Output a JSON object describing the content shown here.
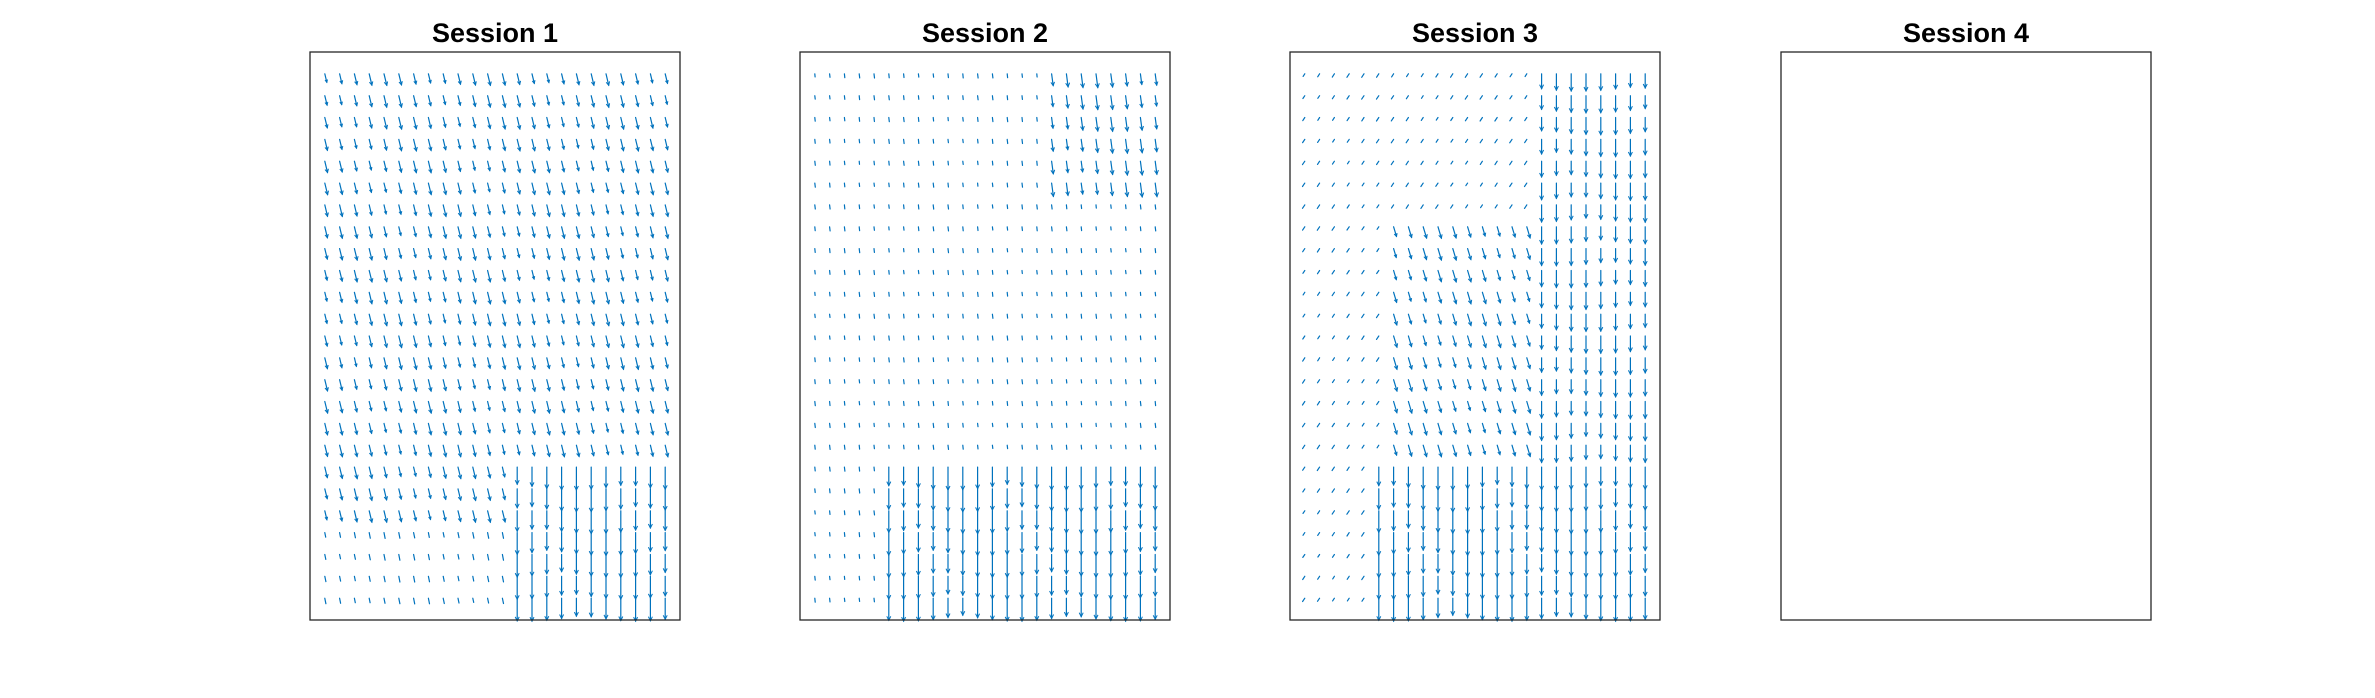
{
  "chart_data": [
    {
      "type": "quiver",
      "title": "Session 1",
      "xlabel": "",
      "ylabel": "",
      "axis_ticks": false,
      "grid": false,
      "arrow_color": "#0072BD",
      "grid_size": [
        24,
        25
      ],
      "regions": [
        {
          "x": [
            0.0,
            1.0
          ],
          "y": [
            0.0,
            1.0
          ],
          "dx": 0.12,
          "dy": -0.5
        },
        {
          "x": [
            0.55,
            1.0
          ],
          "y": [
            0.0,
            0.3
          ],
          "dx": 0.0,
          "dy": -1.0
        },
        {
          "x": [
            0.0,
            0.55
          ],
          "y": [
            0.0,
            0.15
          ],
          "dx": 0.05,
          "dy": -0.25
        }
      ]
    },
    {
      "type": "quiver",
      "title": "Session 2",
      "xlabel": "",
      "ylabel": "",
      "axis_ticks": false,
      "grid": false,
      "arrow_color": "#0072BD",
      "grid_size": [
        24,
        25
      ],
      "regions": [
        {
          "x": [
            0.0,
            1.0
          ],
          "y": [
            0.0,
            1.0
          ],
          "dx": 0.02,
          "dy": -0.18
        },
        {
          "x": [
            0.2,
            1.0
          ],
          "y": [
            0.0,
            0.3
          ],
          "dx": 0.0,
          "dy": -1.0
        },
        {
          "x": [
            0.65,
            1.0
          ],
          "y": [
            0.75,
            1.0
          ],
          "dx": 0.08,
          "dy": -0.6
        }
      ]
    },
    {
      "type": "quiver",
      "title": "Session 3",
      "xlabel": "",
      "ylabel": "",
      "axis_ticks": false,
      "grid": false,
      "arrow_color": "#0072BD",
      "grid_size": [
        24,
        25
      ],
      "regions": [
        {
          "x": [
            0.0,
            1.0
          ],
          "y": [
            0.0,
            1.0
          ],
          "dx": -0.1,
          "dy": -0.15
        },
        {
          "x": [
            0.2,
            1.0
          ],
          "y": [
            0.0,
            0.3
          ],
          "dx": 0.0,
          "dy": -1.0
        },
        {
          "x": [
            0.65,
            1.0
          ],
          "y": [
            0.3,
            1.0
          ],
          "dx": 0.0,
          "dy": -0.75
        },
        {
          "x": [
            0.25,
            0.65
          ],
          "y": [
            0.3,
            0.7
          ],
          "dx": 0.15,
          "dy": -0.5
        }
      ]
    },
    {
      "type": "quiver",
      "title": "Session 4",
      "xlabel": "",
      "ylabel": "",
      "axis_ticks": false,
      "grid": false,
      "arrow_color": "#0072BD",
      "grid_size": [
        0,
        0
      ],
      "regions": []
    }
  ]
}
